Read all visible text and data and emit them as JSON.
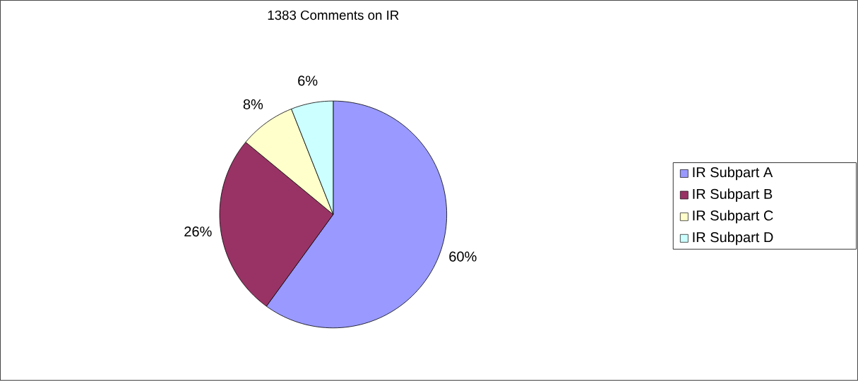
{
  "chart_data": {
    "type": "pie",
    "title": "1383 Comments on IR",
    "categories": [
      "IR Subpart A",
      "IR Subpart B",
      "IR Subpart C",
      "IR Subpart D"
    ],
    "values": [
      60,
      26,
      8,
      6
    ],
    "value_labels": [
      "60%",
      "26%",
      "8%",
      "6%"
    ],
    "colors": [
      "#9999ff",
      "#993366",
      "#ffffcc",
      "#ccffff"
    ],
    "legend": "right"
  }
}
